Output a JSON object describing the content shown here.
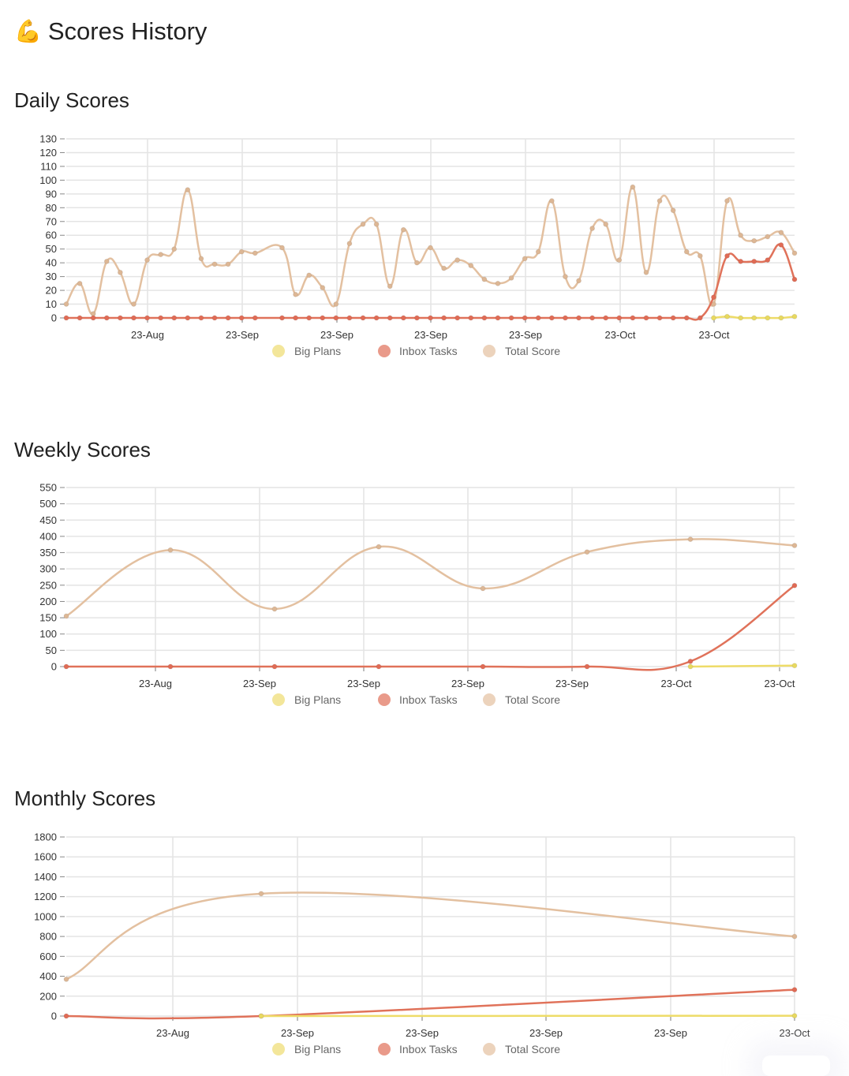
{
  "page": {
    "title": "Scores History",
    "title_icon": "flexed-biceps-emoji",
    "title_emoji": "💪"
  },
  "colors": {
    "big_plans": "#eedc68",
    "inbox_tasks": "#e0725a",
    "total_score": "#e3c0a0",
    "big_plans_legend": "#f3e69a",
    "inbox_tasks_legend": "#e99a8a",
    "total_score_legend": "#ecd3bc",
    "grid": "#e4e4e4",
    "axis_text": "#333333"
  },
  "legend": [
    "Big Plans",
    "Inbox Tasks",
    "Total Score"
  ],
  "sections": {
    "daily": {
      "title": "Daily Scores"
    },
    "weekly": {
      "title": "Weekly Scores"
    },
    "monthly": {
      "title": "Monthly Scores"
    }
  },
  "chart_data": [
    {
      "id": "daily",
      "type": "line",
      "title": "Daily Scores",
      "xlabel": "",
      "ylabel": "",
      "ylim": [
        0,
        130
      ],
      "yticks": [
        0,
        10,
        20,
        30,
        40,
        50,
        60,
        70,
        80,
        90,
        100,
        110,
        120,
        130
      ],
      "xtick_labels": [
        "23-Aug",
        "23-Sep",
        "23-Sep",
        "23-Sep",
        "23-Sep",
        "23-Oct",
        "23-Oct"
      ],
      "grid": true,
      "legend_position": "bottom",
      "x_index": [
        0,
        1,
        2,
        3,
        4,
        5,
        6,
        7,
        8,
        9,
        10,
        11,
        12,
        13,
        14,
        16,
        17,
        18,
        19,
        20,
        21,
        22,
        23,
        24,
        25,
        26,
        27,
        28,
        29,
        30,
        31,
        32,
        33,
        34,
        35,
        36,
        37,
        38,
        39,
        40,
        41,
        42,
        43,
        44,
        45,
        46,
        47,
        48,
        49,
        50,
        51,
        52,
        53,
        54
      ],
      "series": [
        {
          "name": "Total Score",
          "values": [
            10,
            25,
            3,
            41,
            33,
            10,
            42,
            46,
            50,
            93,
            43,
            39,
            39,
            48,
            47,
            51,
            17,
            31,
            22,
            10,
            54,
            68,
            68,
            23,
            64,
            40,
            51,
            36,
            42,
            38,
            28,
            25,
            29,
            43,
            48,
            85,
            30,
            27,
            65,
            68,
            42,
            95,
            33,
            85,
            78,
            48,
            45,
            10,
            85,
            60,
            56,
            59,
            62,
            47
          ]
        },
        {
          "name": "Inbox Tasks",
          "values": [
            0,
            0,
            0,
            0,
            0,
            0,
            0,
            0,
            0,
            0,
            0,
            0,
            0,
            0,
            0,
            0,
            0,
            0,
            0,
            0,
            0,
            0,
            0,
            0,
            0,
            0,
            0,
            0,
            0,
            0,
            0,
            0,
            0,
            0,
            0,
            0,
            0,
            0,
            0,
            0,
            0,
            0,
            0,
            0,
            0,
            0,
            0,
            15,
            45,
            41,
            41,
            42,
            53,
            28
          ]
        },
        {
          "name": "Big Plans",
          "values": [
            null,
            null,
            null,
            null,
            null,
            null,
            null,
            null,
            null,
            null,
            null,
            null,
            null,
            null,
            null,
            null,
            null,
            null,
            null,
            null,
            null,
            null,
            null,
            null,
            null,
            null,
            null,
            null,
            null,
            null,
            null,
            null,
            null,
            null,
            null,
            null,
            null,
            null,
            null,
            null,
            null,
            null,
            null,
            null,
            null,
            null,
            null,
            0,
            1,
            0,
            0,
            0,
            0,
            1
          ]
        }
      ]
    },
    {
      "id": "weekly",
      "type": "line",
      "title": "Weekly Scores",
      "xlabel": "",
      "ylabel": "",
      "ylim": [
        0,
        550
      ],
      "yticks": [
        0,
        50,
        100,
        150,
        200,
        250,
        300,
        350,
        400,
        450,
        500,
        550
      ],
      "xtick_labels": [
        "23-Aug",
        "23-Sep",
        "23-Sep",
        "23-Sep",
        "23-Sep",
        "23-Oct",
        "23-Oct"
      ],
      "grid": true,
      "legend_position": "bottom",
      "series": [
        {
          "name": "Total Score",
          "values": [
            155,
            358,
            177,
            368,
            240,
            352,
            391,
            372
          ]
        },
        {
          "name": "Inbox Tasks",
          "values": [
            0,
            0,
            0,
            0,
            0,
            0,
            16,
            249
          ]
        },
        {
          "name": "Big Plans",
          "values": [
            null,
            null,
            null,
            null,
            null,
            null,
            0,
            3
          ]
        }
      ]
    },
    {
      "id": "monthly",
      "type": "line",
      "title": "Monthly Scores",
      "xlabel": "",
      "ylabel": "",
      "ylim": [
        0,
        1800
      ],
      "yticks": [
        0,
        200,
        400,
        600,
        800,
        1000,
        1200,
        1400,
        1600,
        1800
      ],
      "xtick_labels": [
        "23-Aug",
        "23-Sep",
        "23-Sep",
        "23-Sep",
        "23-Sep",
        "23-Oct"
      ],
      "grid": true,
      "legend_position": "bottom",
      "series": [
        {
          "name": "Total Score",
          "values": [
            370,
            1230,
            800
          ]
        },
        {
          "name": "Inbox Tasks",
          "values": [
            0,
            0,
            265
          ]
        },
        {
          "name": "Big Plans",
          "values": [
            null,
            0,
            3
          ]
        }
      ]
    }
  ]
}
